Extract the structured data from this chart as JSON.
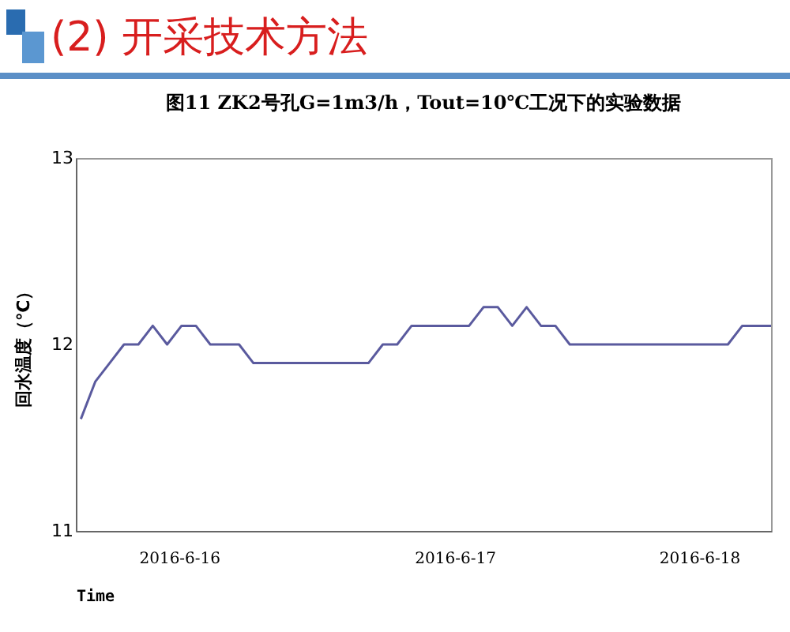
{
  "chart_data": {
    "type": "line",
    "title": "(2) 开采技术方法",
    "subtitle": "图11  ZK2号孔G=1m3/h，Tout=10℃工况下的实验数据",
    "xlabel": "Time",
    "ylabel": "回水温度（℃）",
    "x": [
      "2016-06-16T10:00",
      "2016-06-16T11:00",
      "2016-06-16T12:00",
      "2016-06-16T13:00",
      "2016-06-16T14:00",
      "2016-06-16T15:00",
      "2016-06-16T16:00",
      "2016-06-16T17:00",
      "2016-06-16T18:00",
      "2016-06-16T19:00",
      "2016-06-16T20:00",
      "2016-06-16T21:00",
      "2016-06-16T22:00",
      "2016-06-16T23:00",
      "2016-06-17T00:00",
      "2016-06-17T01:00",
      "2016-06-17T02:00",
      "2016-06-17T03:00",
      "2016-06-17T04:00",
      "2016-06-17T05:00",
      "2016-06-17T06:00",
      "2016-06-17T07:00",
      "2016-06-17T08:00",
      "2016-06-17T09:00",
      "2016-06-17T10:00",
      "2016-06-17T11:00",
      "2016-06-17T12:00",
      "2016-06-17T13:00",
      "2016-06-17T14:00",
      "2016-06-17T15:00",
      "2016-06-17T16:00",
      "2016-06-17T17:00",
      "2016-06-17T18:00",
      "2016-06-17T19:00",
      "2016-06-17T20:00",
      "2016-06-17T21:00",
      "2016-06-17T22:00",
      "2016-06-17T23:00",
      "2016-06-18T00:00",
      "2016-06-18T01:00",
      "2016-06-18T02:00",
      "2016-06-18T03:00",
      "2016-06-18T04:00",
      "2016-06-18T05:00",
      "2016-06-18T06:00",
      "2016-06-18T07:00",
      "2016-06-18T08:00",
      "2016-06-18T09:00",
      "2016-06-18T10:00"
    ],
    "series": [
      {
        "color": "#5a5a9e",
        "values": [
          11.6,
          11.8,
          11.9,
          12.0,
          12.0,
          12.1,
          12.0,
          12.1,
          12.1,
          12.0,
          12.0,
          12.0,
          11.9,
          11.9,
          11.9,
          11.9,
          11.9,
          11.9,
          11.9,
          11.9,
          11.9,
          12.0,
          12.0,
          12.1,
          12.1,
          12.1,
          12.1,
          12.1,
          12.2,
          12.2,
          12.1,
          12.2,
          12.1,
          12.1,
          12.0,
          12.0,
          12.0,
          12.0,
          12.0,
          12.0,
          12.0,
          12.0,
          12.0,
          12.0,
          12.0,
          12.0,
          12.1,
          12.1,
          12.1
        ]
      }
    ],
    "xlim": [
      "2016-06-16T09:39",
      "2016-06-18T10:00"
    ],
    "xticks": [
      {
        "value": "2016-06-16T16:50",
        "label": "2016-6-16"
      },
      {
        "value": "2016-06-17T12:00",
        "label": "2016-6-17"
      },
      {
        "value": "2016-06-18T05:00",
        "label": "2016-6-18"
      }
    ],
    "ylim": [
      11,
      13
    ],
    "yticks": [
      11,
      12,
      13
    ],
    "grid": false,
    "legend": false,
    "marker": "none",
    "line_style": "solid"
  }
}
